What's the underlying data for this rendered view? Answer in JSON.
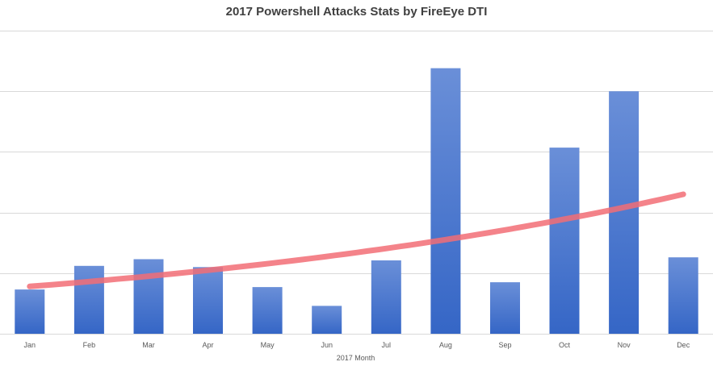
{
  "chart_data": {
    "type": "bar",
    "title": "2017 Powershell Attacks Stats by FireEye DTI",
    "xlabel": "2017 Month",
    "ylabel": "",
    "categories": [
      "Jan",
      "Feb",
      "Mar",
      "Apr",
      "May",
      "Jun",
      "Jul",
      "Aug",
      "Sep",
      "Oct",
      "Nov",
      "Dec"
    ],
    "values": [
      0.73,
      1.12,
      1.23,
      1.1,
      0.77,
      0.46,
      1.21,
      4.38,
      0.85,
      3.07,
      4.0,
      1.26
    ],
    "trendline": {
      "type": "exponential",
      "start": 0.78,
      "end": 2.3
    },
    "ylim": [
      0,
      5
    ],
    "gridlines": [
      0,
      1,
      2,
      3,
      4,
      5
    ],
    "y_tick_labels_shown": false,
    "grid": true,
    "legend": "none",
    "colors": {
      "bar_top": "#6a8fd8",
      "bar_bottom": "#3566c6",
      "trend": "#f26d75",
      "grid": "#d9d9d9"
    }
  }
}
